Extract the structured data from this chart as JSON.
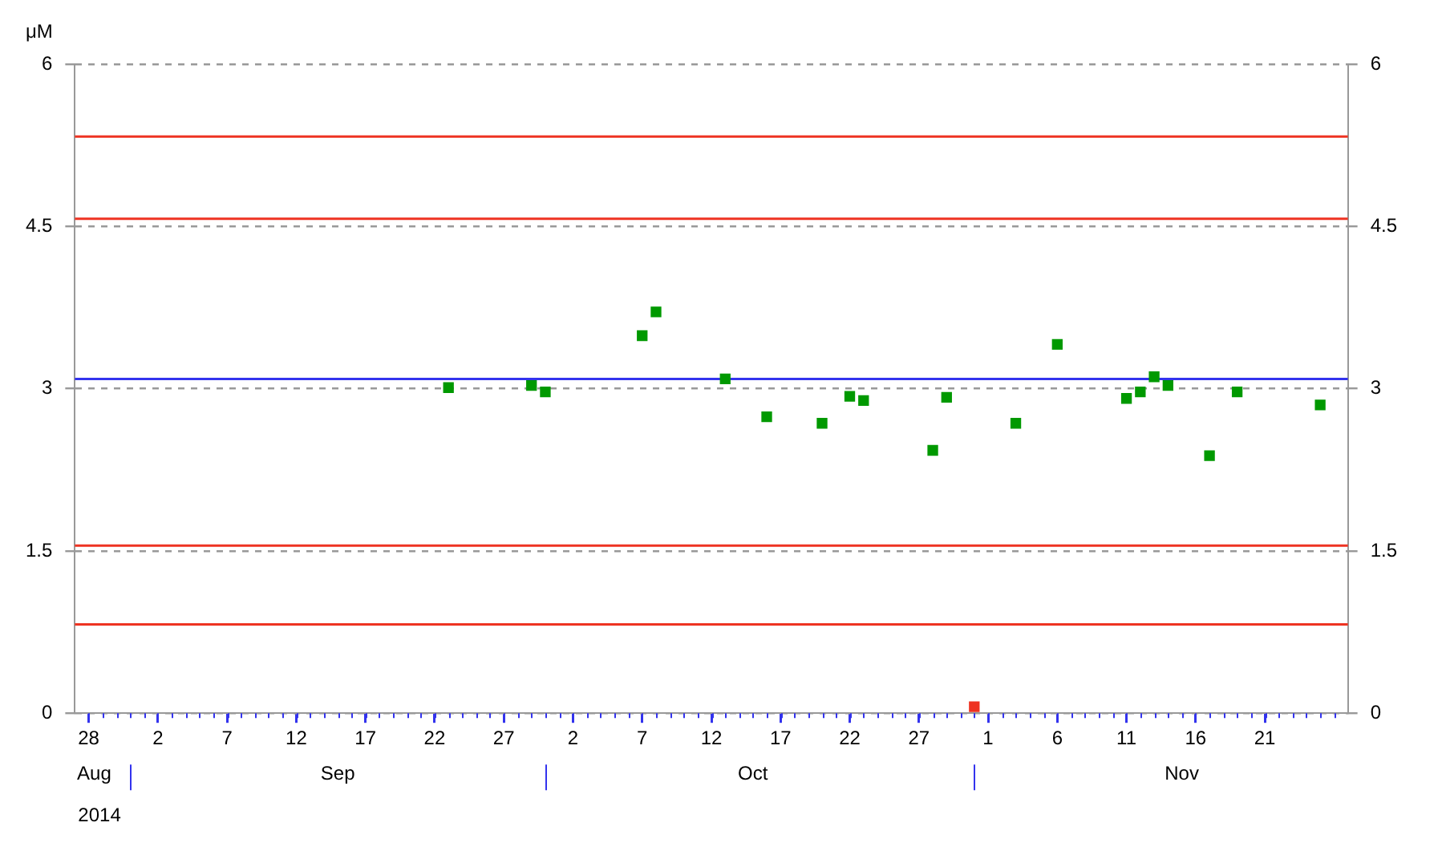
{
  "chart_data": {
    "type": "scatter",
    "ylabel": "μM",
    "x": [
      "2014-09-23",
      "2014-09-29",
      "2014-09-30",
      "2014-10-07",
      "2014-10-08",
      "2014-10-13",
      "2014-10-16",
      "2014-10-20",
      "2014-10-22",
      "2014-10-23",
      "2014-10-28",
      "2014-10-29",
      "2014-10-31",
      "2014-11-03",
      "2014-11-06",
      "2014-11-11",
      "2014-11-12",
      "2014-11-13",
      "2014-11-14",
      "2014-11-17",
      "2014-11-19",
      "2014-11-25"
    ],
    "series": [
      {
        "values": [
          3.01,
          3.03,
          2.97,
          3.49,
          3.71,
          3.09,
          2.74,
          2.68,
          2.93,
          2.89,
          2.43,
          2.92,
          0.06,
          2.68,
          3.41,
          2.91,
          2.97,
          3.11,
          3.03,
          2.38,
          2.97,
          2.85
        ],
        "colors": [
          "#009900",
          "#009900",
          "#009900",
          "#009900",
          "#009900",
          "#009900",
          "#009900",
          "#009900",
          "#009900",
          "#009900",
          "#009900",
          "#009900",
          "#ee3322",
          "#009900",
          "#009900",
          "#009900",
          "#009900",
          "#009900",
          "#009900",
          "#009900",
          "#009900",
          "#009900"
        ]
      }
    ],
    "marker": "square",
    "grid": "y",
    "legend": false,
    "xlim": [
      "2014-08-27",
      "2014-11-27"
    ],
    "xticks": [
      {
        "value": "2014-08-28",
        "label": "28"
      },
      {
        "value": "2014-09-02",
        "label": "2"
      },
      {
        "value": "2014-09-07",
        "label": "7"
      },
      {
        "value": "2014-09-12",
        "label": "12"
      },
      {
        "value": "2014-09-17",
        "label": "17"
      },
      {
        "value": "2014-09-22",
        "label": "22"
      },
      {
        "value": "2014-09-27",
        "label": "27"
      },
      {
        "value": "2014-10-02",
        "label": "2"
      },
      {
        "value": "2014-10-07",
        "label": "7"
      },
      {
        "value": "2014-10-12",
        "label": "12"
      },
      {
        "value": "2014-10-17",
        "label": "17"
      },
      {
        "value": "2014-10-22",
        "label": "22"
      },
      {
        "value": "2014-10-27",
        "label": "27"
      },
      {
        "value": "2014-11-01",
        "label": "1"
      },
      {
        "value": "2014-11-06",
        "label": "6"
      },
      {
        "value": "2014-11-11",
        "label": "11"
      },
      {
        "value": "2014-11-16",
        "label": "16"
      },
      {
        "value": "2014-11-21",
        "label": "21"
      }
    ],
    "ylim": [
      0,
      6
    ],
    "yticks": [
      0,
      1.5,
      3,
      4.5,
      6
    ],
    "y2lim": [
      0,
      6
    ],
    "y2ticks": [
      0,
      1.5,
      3,
      4.5,
      6
    ],
    "ref_lines": [
      {
        "axis": "y",
        "value": 5.33,
        "color": "#ee3322"
      },
      {
        "axis": "y",
        "value": 4.57,
        "color": "#ee3322"
      },
      {
        "axis": "y",
        "value": 3.09,
        "color": "#3333ee"
      },
      {
        "axis": "y",
        "value": 1.55,
        "color": "#ee3322"
      },
      {
        "axis": "y",
        "value": 0.82,
        "color": "#ee3322"
      }
    ],
    "annotations": [
      "Aug",
      "Sep",
      "Oct",
      "Nov",
      "2014"
    ]
  }
}
